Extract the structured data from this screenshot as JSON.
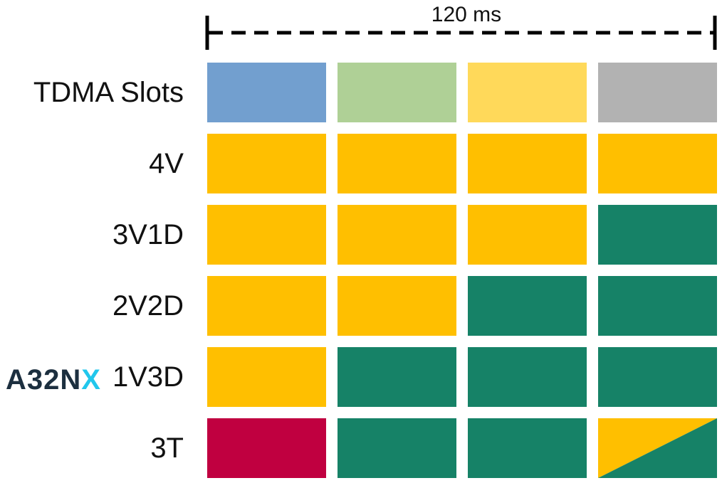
{
  "timeline": {
    "label": "120 ms"
  },
  "brand": {
    "prefix": "A32N",
    "accent": "X"
  },
  "colors": {
    "slot1": "#729fcf",
    "slot2": "#afd096",
    "slot3": "#ffd95a",
    "slot4": "#b2b2b2",
    "V": "#ffbf00",
    "D": "#168267",
    "T": "#c00040"
  },
  "rows": [
    {
      "label": "TDMA Slots",
      "cells": [
        "slot1",
        "slot2",
        "slot3",
        "slot4"
      ]
    },
    {
      "label": "4V",
      "cells": [
        "V",
        "V",
        "V",
        "V"
      ]
    },
    {
      "label": "3V1D",
      "cells": [
        "V",
        "V",
        "V",
        "D"
      ]
    },
    {
      "label": "2V2D",
      "cells": [
        "V",
        "V",
        "D",
        "D"
      ]
    },
    {
      "label": "1V3D",
      "cells": [
        "V",
        "D",
        "D",
        "D"
      ]
    },
    {
      "label": "3T",
      "cells": [
        "T",
        "D",
        "D",
        "V/D"
      ]
    }
  ]
}
